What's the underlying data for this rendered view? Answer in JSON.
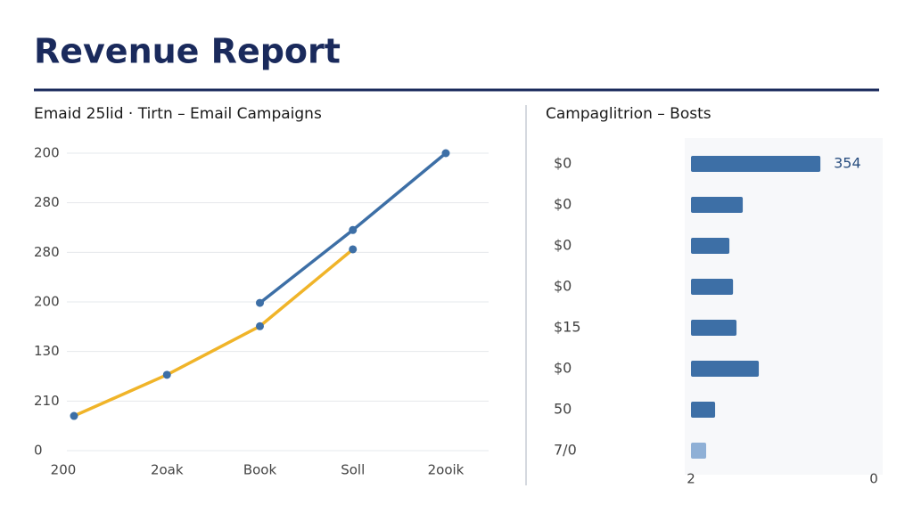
{
  "header": {
    "title": "Revenue Report"
  },
  "chart_data": [
    {
      "type": "line",
      "title": "Emaid 25lid · Tirtn – Email Campaigns",
      "categories": [
        "200",
        "2oak",
        "Book",
        "Soll",
        "2ooik"
      ],
      "series": [
        {
          "color": "#f0b429",
          "values": [
            0.7,
            1.53,
            2.51,
            4.06,
            null
          ]
        },
        {
          "color": "#3d6fa6",
          "values": [
            null,
            null,
            2.98,
            4.45,
            6
          ]
        }
      ],
      "marker_color": "#3d6fa6",
      "ylim": [
        0,
        6
      ],
      "yticks": [
        {
          "value": 0,
          "label": "0"
        },
        {
          "value": 1,
          "label": "210"
        },
        {
          "value": 2,
          "label": "130"
        },
        {
          "value": 3,
          "label": "200"
        },
        {
          "value": 4,
          "label": "280"
        },
        {
          "value": 5,
          "label": "280"
        },
        {
          "value": 6,
          "label": "200"
        }
      ],
      "grid": true
    },
    {
      "type": "bar",
      "title": "Campaglitrion – Bosts",
      "categories": [
        "$0",
        "$0",
        "$0",
        "$0",
        "$15",
        "$0",
        "50",
        "7/0"
      ],
      "values": [
        354,
        141.6,
        105,
        115,
        124.5,
        185.5,
        66,
        41.5
      ],
      "value_labels": [
        "354",
        null,
        null,
        null,
        null,
        null,
        null,
        null
      ],
      "colors": [
        "#3d6fa6",
        "#3d6fa6",
        "#3d6fa6",
        "#3d6fa6",
        "#3d6fa6",
        "#3d6fa6",
        "#3d6fa6",
        "#8fb0d6"
      ],
      "xlim": [
        0,
        500
      ],
      "xticks": [
        {
          "value": 0,
          "label": "2"
        },
        {
          "value": 500,
          "label": "0"
        }
      ]
    }
  ]
}
